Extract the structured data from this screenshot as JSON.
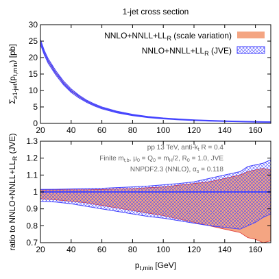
{
  "chart_data": [
    {
      "type": "area",
      "title": "1-jet cross section",
      "ylabel_main": "Σ",
      "ylabel_sub": "≥1-jet",
      "ylabel_arg": "(p",
      "ylabel_arg_sub": "t,min",
      "ylabel_unit": ") [pb]",
      "xlim": [
        20,
        170
      ],
      "ylim": [
        0,
        30
      ],
      "xticks": [
        20,
        40,
        60,
        80,
        100,
        120,
        140,
        160
      ],
      "yticks": [
        0,
        5,
        10,
        15,
        20,
        25,
        30
      ],
      "x": [
        20,
        22.5,
        25,
        30,
        35,
        40,
        45,
        50,
        55,
        60,
        70,
        80,
        90,
        100,
        110,
        120,
        130,
        140,
        150,
        160,
        170
      ],
      "series": [
        {
          "name_main": "NNLO+NNLL+LL",
          "name_sub": "R",
          "name_tail": " (scale variation)",
          "color": "#f4a582",
          "upper": [
            25.3,
            22.0,
            19.5,
            15.8,
            12.7,
            10.3,
            8.5,
            7.0,
            5.85,
            4.9,
            3.6,
            2.7,
            2.06,
            1.63,
            1.32,
            1.07,
            0.9,
            0.76,
            0.65,
            0.56,
            0.48
          ],
          "lower": [
            24.2,
            21.0,
            18.5,
            14.9,
            11.9,
            9.6,
            7.9,
            6.5,
            5.4,
            4.5,
            3.25,
            2.4,
            1.8,
            1.4,
            1.1,
            0.88,
            0.72,
            0.59,
            0.49,
            0.41,
            0.34
          ]
        },
        {
          "name_main": "NNLO+NNLL+LL",
          "name_sub": "R",
          "name_tail": " (JVE)",
          "color": "#4444ff",
          "upper": [
            25.5,
            22.2,
            19.7,
            16.0,
            12.9,
            10.5,
            8.6,
            7.1,
            5.95,
            5.0,
            3.68,
            2.75,
            2.1,
            1.66,
            1.35,
            1.1,
            0.93,
            0.79,
            0.68,
            0.59,
            0.51
          ],
          "lower": [
            24.0,
            20.8,
            18.3,
            14.7,
            11.7,
            9.4,
            7.75,
            6.4,
            5.3,
            4.42,
            3.18,
            2.35,
            1.76,
            1.36,
            1.07,
            0.85,
            0.69,
            0.56,
            0.46,
            0.38,
            0.31
          ]
        }
      ]
    },
    {
      "type": "area",
      "xlabel_main": "p",
      "xlabel_sub": "t,min",
      "xlabel_unit": " [GeV]",
      "ylabel_main": "ratio to NNLO+NNLL+LL",
      "ylabel_sub": "R",
      "ylabel_unit": " (JVE)",
      "xlim": [
        20,
        170
      ],
      "ylim": [
        0.7,
        1.3
      ],
      "xticks": [
        20,
        40,
        60,
        80,
        100,
        120,
        140,
        160
      ],
      "yticks": [
        0.7,
        0.8,
        0.9,
        1.0,
        1.1,
        1.2,
        1.3
      ],
      "ytick_labels": [
        "0.7",
        "0.8",
        "0.9",
        "1",
        "1.1",
        "1.2",
        "1.3"
      ],
      "annotations": [
        {
          "main": "pp 13 TeV, anti-k",
          "sub": "t",
          "tail": " R = 0.4"
        },
        {
          "main": "Finite m",
          "sub": "t,b",
          "tail": ", μ",
          "sub2": "0",
          "tail2": " = Q",
          "sub3": "0",
          "tail3": " = m",
          "sub4": "H",
          "tail4": "/2, R",
          "sub5": "0",
          "tail5": " = 1.0, JVE"
        },
        {
          "main": "NNPDF2.3 (NNLO), α",
          "sub": "s",
          "tail": " = 0.118"
        }
      ],
      "x": [
        20,
        30,
        40,
        50,
        60,
        70,
        80,
        90,
        100,
        110,
        120,
        130,
        140,
        150,
        155,
        160,
        165,
        170
      ],
      "scale_upper": [
        1.012,
        1.012,
        1.013,
        1.013,
        1.015,
        1.018,
        1.02,
        1.025,
        1.03,
        1.04,
        1.05,
        1.06,
        1.08,
        1.1,
        1.12,
        1.13,
        1.14,
        1.13
      ],
      "scale_lower": [
        0.96,
        0.953,
        0.945,
        0.935,
        0.92,
        0.905,
        0.89,
        0.875,
        0.86,
        0.84,
        0.82,
        0.8,
        0.78,
        0.76,
        0.73,
        0.72,
        0.7,
        0.71
      ],
      "jve_upper": [
        1.015,
        1.016,
        1.018,
        1.02,
        1.022,
        1.026,
        1.03,
        1.035,
        1.042,
        1.05,
        1.06,
        1.08,
        1.1,
        1.12,
        1.15,
        1.16,
        1.17,
        1.19
      ],
      "jve_lower": [
        0.945,
        0.94,
        0.93,
        0.915,
        0.9,
        0.885,
        0.87,
        0.855,
        0.845,
        0.83,
        0.815,
        0.8,
        0.79,
        0.78,
        0.8,
        0.82,
        0.85,
        0.87
      ],
      "reference": 1.0
    }
  ]
}
